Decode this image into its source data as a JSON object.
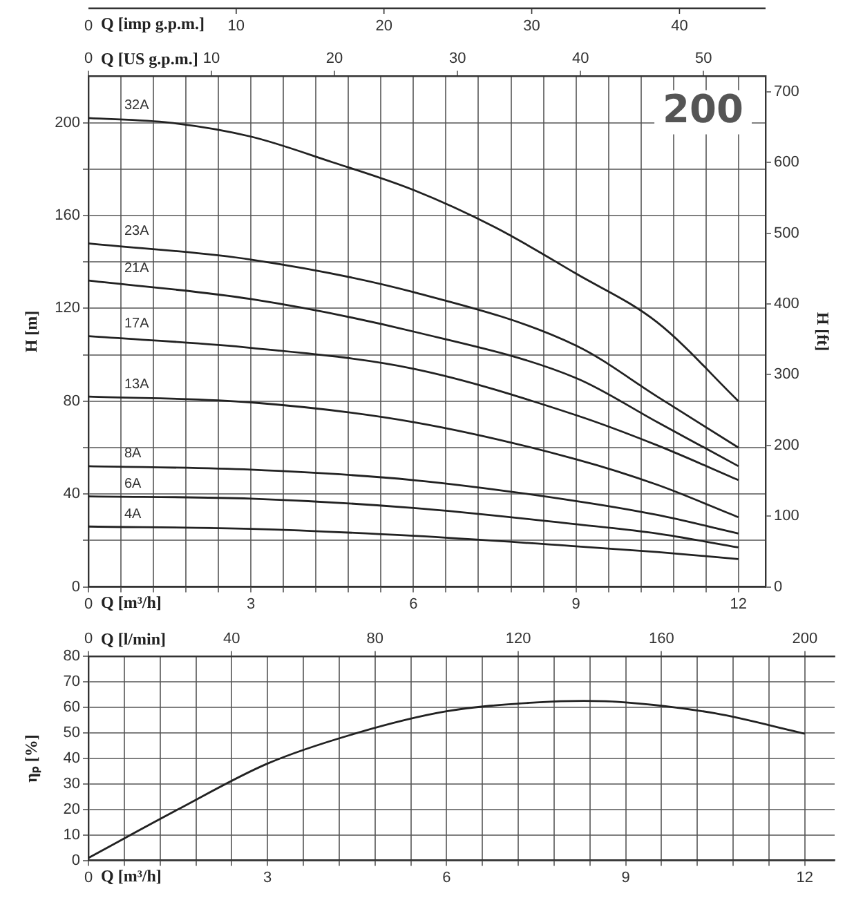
{
  "chart_data": [
    {
      "type": "line",
      "annotations": [
        "200",
        "Q [imp g.p.m.]",
        "0",
        "10",
        "20",
        "30",
        "40"
      ],
      "xlabel": "Q [m³/h]",
      "xlim": [
        0,
        12.5
      ],
      "xticks": [
        0,
        {
          "value": 0.6,
          "label": null
        },
        {
          "value": 1.2,
          "label": null
        },
        {
          "value": 1.8,
          "label": null
        },
        {
          "value": 2.4,
          "label": null
        },
        3,
        {
          "value": 3.6,
          "label": null
        },
        {
          "value": 4.2,
          "label": null
        },
        {
          "value": 4.8,
          "label": null
        },
        {
          "value": 5.4,
          "label": null
        },
        6,
        {
          "value": 6.6,
          "label": null
        },
        {
          "value": 7.2,
          "label": null
        },
        {
          "value": 7.8,
          "label": null
        },
        {
          "value": 8.4,
          "label": null
        },
        9,
        {
          "value": 9.6,
          "label": null
        },
        {
          "value": 10.2,
          "label": null
        },
        {
          "value": 10.8,
          "label": null
        },
        {
          "value": 11.4,
          "label": null
        },
        12
      ],
      "x2label": "Q [US g.p.m.]",
      "x2lim": [
        0,
        55.04
      ],
      "x2ticks": [
        0,
        10,
        20,
        30,
        40,
        50
      ],
      "ylabel": "H [m]",
      "ylim": [
        0,
        220
      ],
      "yticks": [
        0,
        {
          "value": 20,
          "label": null
        },
        40,
        {
          "value": 60,
          "label": null
        },
        80,
        {
          "value": 100,
          "label": null
        },
        120,
        {
          "value": 140,
          "label": null
        },
        160,
        {
          "value": 180,
          "label": null
        },
        200
      ],
      "y2label": "H [ft]",
      "y2lim": [
        0,
        721.8
      ],
      "y2ticks": [
        0,
        100,
        200,
        300,
        400,
        500,
        600,
        700
      ],
      "grid": true,
      "x": [
        0,
        3,
        6,
        9,
        10.5,
        12
      ],
      "series": [
        {
          "name": "32A",
          "color": "#222222",
          "x": [
            0,
            1.5,
            3,
            4.5,
            6,
            7.5,
            9,
            10.5,
            12
          ],
          "values": [
            202,
            200,
            194,
            183,
            171,
            155,
            135,
            114,
            80
          ]
        },
        {
          "name": "23A",
          "color": "#222222",
          "values": [
            148,
            141,
            127,
            104,
            82,
            60
          ]
        },
        {
          "name": "21A",
          "color": "#222222",
          "values": [
            132,
            124,
            110,
            90,
            71,
            52
          ]
        },
        {
          "name": "17A",
          "color": "#222222",
          "values": [
            108,
            103,
            94,
            74,
            61,
            46
          ]
        },
        {
          "name": "13A",
          "color": "#222222",
          "values": [
            82,
            79.5,
            71,
            55,
            44,
            30
          ]
        },
        {
          "name": "8A",
          "color": "#222222",
          "values": [
            52,
            50.5,
            46,
            37,
            31,
            23
          ]
        },
        {
          "name": "6A",
          "color": "#222222",
          "values": [
            39,
            38,
            34,
            27,
            23,
            17
          ]
        },
        {
          "name": "4A",
          "color": "#222222",
          "values": [
            26,
            25,
            22,
            17.5,
            15,
            12
          ]
        }
      ]
    },
    {
      "type": "line",
      "xlabel": "Q [m³/h]",
      "xlim": [
        0,
        12.5
      ],
      "xticks": [
        0,
        {
          "value": 0.6,
          "label": null
        },
        {
          "value": 1.2,
          "label": null
        },
        {
          "value": 1.8,
          "label": null
        },
        {
          "value": 2.4,
          "label": null
        },
        3,
        {
          "value": 3.6,
          "label": null
        },
        {
          "value": 4.2,
          "label": null
        },
        {
          "value": 4.8,
          "label": null
        },
        {
          "value": 5.4,
          "label": null
        },
        6,
        {
          "value": 6.6,
          "label": null
        },
        {
          "value": 7.2,
          "label": null
        },
        {
          "value": 7.8,
          "label": null
        },
        {
          "value": 8.4,
          "label": null
        },
        9,
        {
          "value": 9.6,
          "label": null
        },
        {
          "value": 10.2,
          "label": null
        },
        {
          "value": 10.8,
          "label": null
        },
        {
          "value": 11.4,
          "label": null
        },
        12
      ],
      "x2label": "Q [l/min]",
      "x2lim": [
        0,
        208.33
      ],
      "x2ticks": [
        0,
        40,
        80,
        120,
        160,
        200
      ],
      "ylabel": "ηₚ [%]",
      "ylim": [
        0,
        80
      ],
      "yticks": [
        0,
        10,
        20,
        30,
        40,
        50,
        60,
        70,
        80
      ],
      "grid": true,
      "x": [
        0,
        1.5,
        3,
        4.5,
        6,
        7.5,
        8.3,
        9,
        10.5,
        12
      ],
      "series": [
        {
          "color": "#222222",
          "values": [
            1,
            20,
            38,
            50,
            58.5,
            62,
            62.6,
            62,
            57.7,
            49.7
          ]
        }
      ]
    }
  ]
}
